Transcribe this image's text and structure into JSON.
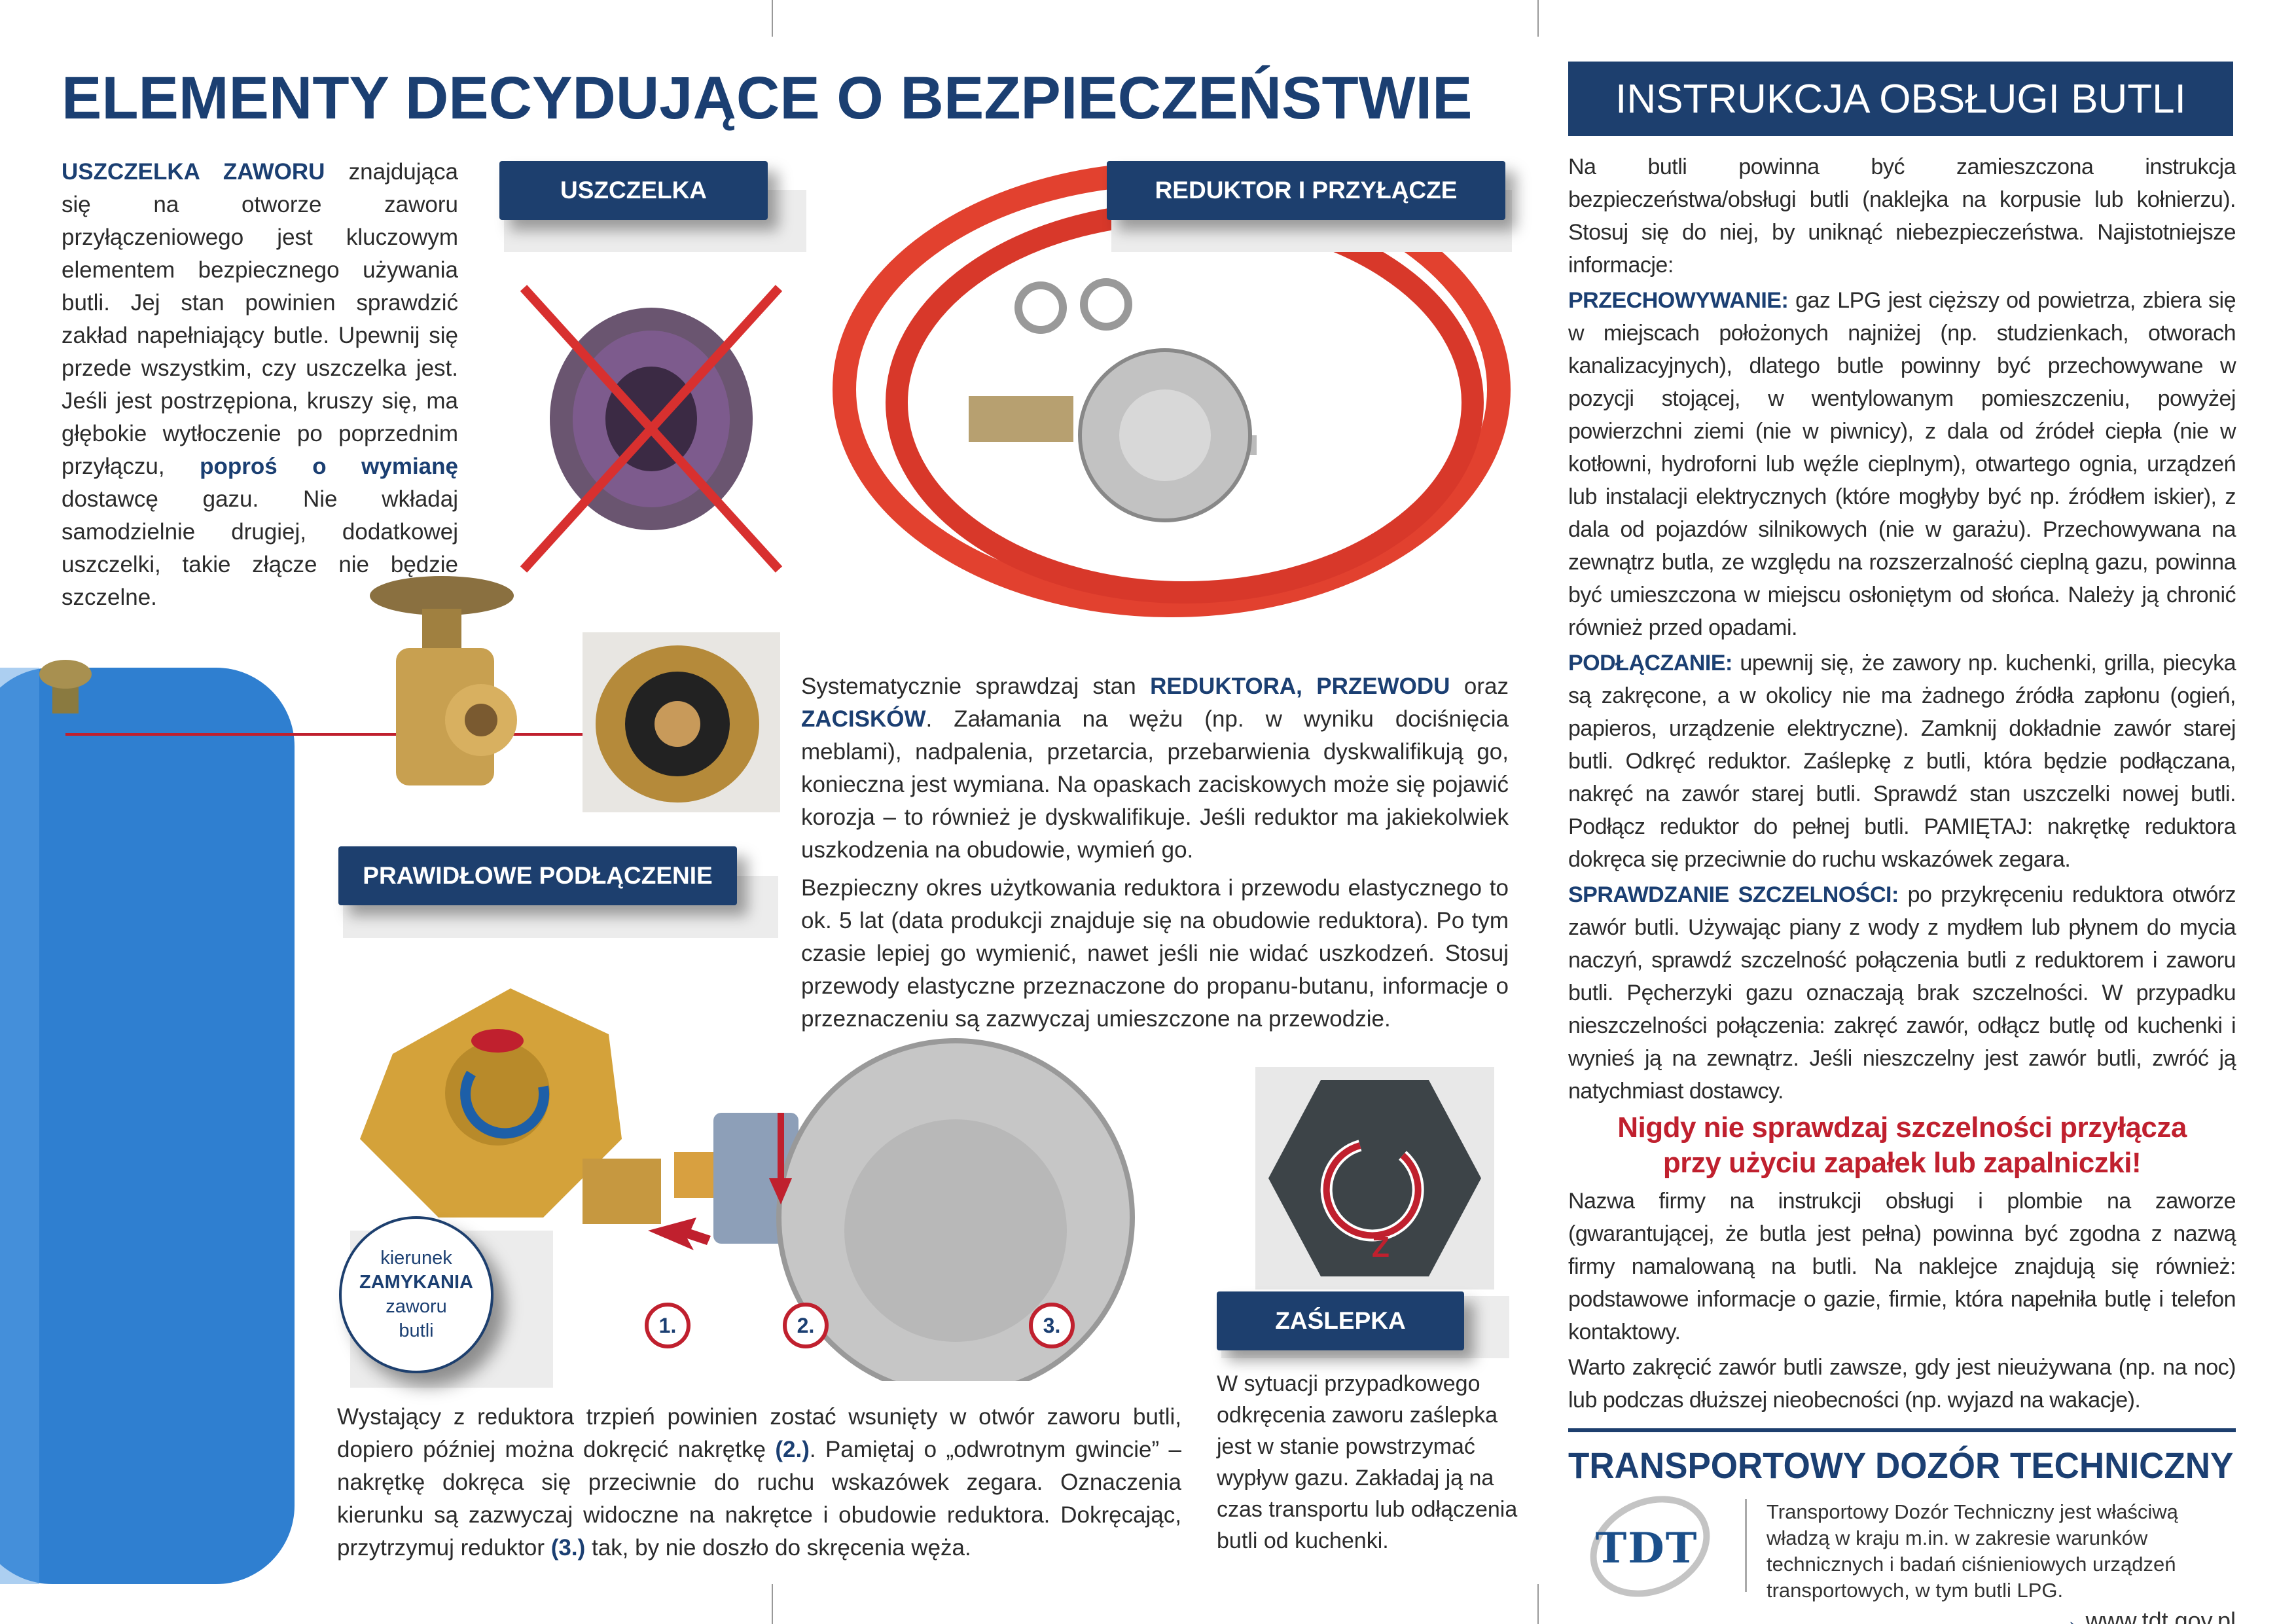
{
  "title": "ELEMENTY DECYDUJĄCE O BEZPIECZEŃSTWIE",
  "instructions_header": "INSTRUKCJA OBSŁUGI BUTLI",
  "labels": {
    "gasket": "USZCZELKA",
    "reducer": "REDUKTOR I PRZYŁĄCZE",
    "connection": "PRAWIDŁOWE PODŁĄCZENIE",
    "cap": "ZAŚLEPKA"
  },
  "callout": {
    "line1": "kierunek",
    "line2": "ZAMYKANIA",
    "line3": "zaworu",
    "line4": "butli"
  },
  "steps": [
    "1.",
    "2.",
    "3."
  ],
  "cap_letter": "Z",
  "gasket_text": [
    "USZCZELKA ZAWORU",
    " znajdująca się na otworze zaworu przyłączeniowego jest kluczowym elementem bezpiecznego używania butli. Jej stan powinien sprawdzić zakład napełniający butle. Upewnij się przede wszystkim, czy uszczelka jest. Jeśli jest postrzępiona, kruszy się, ma głębokie wytłoczenie po poprzednim przyłączu, ",
    "poproś o wymianę",
    " dostawcę gazu. Nie wkładaj samodzielnie drugiej, dodatkowej uszczelki, takie złącze nie będzie szczelne."
  ],
  "reducer_text": {
    "p1": [
      "Systematycznie sprawdzaj stan ",
      "REDUKTORA, PRZEWODU",
      " oraz ",
      "ZACISKÓW",
      ". Załamania na wężu (np. w wyniku dociśnięcia meblami), nadpalenia, przetarcia, przebarwienia dyskwalifikują go, konieczna jest wymiana. Na opaskach zaciskowych może się pojawić korozja – to również je dyskwalifikuje. Jeśli reduktor ma jakiekolwiek uszkodzenia na obudowie, wymień go."
    ],
    "p2": "Bezpieczny okres użytkowania reduktora i przewodu elastycznego to ok. 5 lat (data produkcji znajduje się na obudowie reduktora). Po tym czasie lepiej go wymienić, nawet jeśli nie widać uszkodzeń. Stosuj przewody elastyczne przeznaczone do propanu-butanu, informacje o przeznaczeniu są zazwyczaj umieszczone na przewodzie."
  },
  "connection_text": [
    "Wystający z reduktora trzpień powinien zostać wsunięty w otwór zaworu butli, dopiero później można dokręcić nakrętkę ",
    "(2.)",
    ". Pamiętaj o „odwrotnym gwincie” – nakrętkę dokręca się przeciwnie do ruchu wskazówek zegara. Oznaczenia kierunku są zazwyczaj widoczne na nakrętce i obudowie reduktora. Dokręcając, przytrzymuj reduktor ",
    "(3.)",
    " tak, by nie doszło do skręcenia węża."
  ],
  "cap_text": "W sytuacji przypadkowego odkręcenia zaworu zaślepka jest w stanie powstrzymać wypływ gazu. Zakładaj ją na czas transportu lub odłączenia butli od kuchenki.",
  "instructions": {
    "intro": "Na butli powinna być zamieszczona instrukcja bezpieczeństwa/obsługi butli (naklejka na korpusie lub kołnierzu). Stosuj się do niej, by uniknąć niebezpieczeństwa. Najistotniejsze informacje:",
    "storage_head": "PRZECHOWYWANIE:",
    "storage": " gaz LPG jest cięższy od powietrza, zbiera się w miejscach położonych najniżej (np. studzienkach, otworach kanalizacyjnych), dlatego butle powinny być przechowywane w pozycji stojącej, w wentylowanym pomieszczeniu, powyżej powierzchni ziemi (nie w piwnicy), z dala od źródeł ciepła (nie w kotłowni, hydroforni lub węźle cieplnym), otwartego ognia, urządzeń lub instalacji elektrycznych (które mogłyby być np. źródłem iskier), z dala od pojazdów silnikowych (nie w garażu). Przechowywana na zewnątrz butla, ze względu na rozszerzalność cieplną gazu, powinna być umieszczona w miejscu osłoniętym od słońca. Należy ją chronić również przed opadami.",
    "connecting_head": "PODŁĄCZANIE:",
    "connecting": " upewnij się, że zawory np. kuchenki, grilla, piecyka są zakręcone, a w okolicy nie ma żadnego źródła zapłonu (ogień, papieros, urządzenie elektryczne). Zamknij dokładnie zawór starej butli. Odkręć reduktor. Zaślepkę z butli, która będzie podłączana, nakręć na zawór starej butli. Sprawdź stan uszczelki nowej butli. Podłącz reduktor do pełnej butli. PAMIĘTAJ: nakrętkę reduktora dokręca się przeciwnie do ruchu wskazówek zegara.",
    "leak_head": "SPRAWDZANIE SZCZELNOŚCI:",
    "leak": " po przykręceniu reduktora otwórz zawór butli. Używając piany z wody z mydłem lub płynem do mycia naczyń, sprawdź szczelność połączenia butli z reduktorem i zaworu butli. Pęcherzyki gazu oznaczają brak szczelności. W przypadku nieszczelności połączenia: zakręć zawór, odłącz butlę od kuchenki i wynieś ją na zewnątrz. Jeśli nieszczelny jest zawór butli, zwróć ją natychmiast dostawcy.",
    "warning_line1": "Nigdy nie sprawdzaj szczelności przyłącza",
    "warning_line2": "przy użyciu zapałek lub zapalniczki!",
    "name_para": "Nazwa firmy na instrukcji obsługi i plombie na zaworze (gwarantującej, że butla jest pełna) powinna być zgodna z nazwą firmy namalowaną na butli. Na naklejce znajdują się również: podstawowe informacje o gazie, firmie, która napełniła butlę i telefon kontaktowy.",
    "close_para": "Warto zakręcić zawór butli zawsze, gdy jest nieużywana (np. na noc) lub podczas dłuższej nieobecności (np. wyjazd na wakacje)."
  },
  "footer": {
    "org_heading": "TRANSPORTOWY DOZÓR TECHNICZNY",
    "logo_text": "TDT",
    "description": "Transportowy Dozór Techniczny jest właściwą władzą w kraju m.in. w zakresie warunków technicznych i badań ciśnieniowych urządzeń transportowych, w tym butli LPG.",
    "link": "www.tdt.gov.pl",
    "link_arrow": "→"
  },
  "colors": {
    "navy": "#1d3f6e",
    "red": "#c0202e",
    "cylinder_blue": "#2f7fd0",
    "hose_red": "#e2412f",
    "brass": "#c89a3a"
  }
}
